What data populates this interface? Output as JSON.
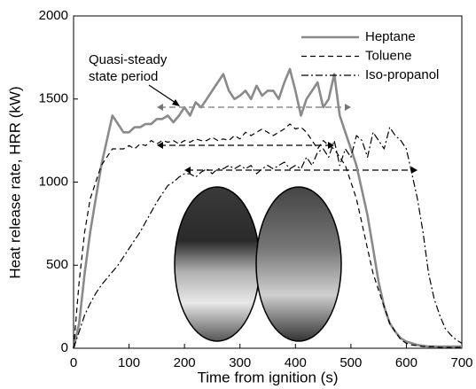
{
  "chart_data": {
    "type": "line",
    "x_label": "Time from ignition (s)",
    "y_label": "Heat release rate, HRR (kW)",
    "annotation": [
      "Quasi-steady",
      "state period"
    ],
    "x": [
      0,
      10,
      20,
      30,
      40,
      50,
      60,
      70,
      80,
      90,
      100,
      110,
      120,
      130,
      140,
      150,
      160,
      170,
      180,
      190,
      200,
      210,
      220,
      230,
      240,
      250,
      260,
      270,
      280,
      290,
      300,
      310,
      320,
      330,
      340,
      350,
      360,
      370,
      380,
      390,
      400,
      410,
      420,
      430,
      440,
      450,
      460,
      470,
      480,
      490,
      500,
      510,
      520,
      530,
      540,
      550,
      560,
      570,
      580,
      590,
      600,
      610,
      620,
      630,
      640,
      650,
      660,
      670,
      680,
      690,
      700
    ],
    "series": [
      {
        "name": "Heptane",
        "color": "#8a8a8a",
        "dash": "none",
        "width": 2.6,
        "values": [
          0,
          150,
          450,
          700,
          900,
          1100,
          1250,
          1400,
          1350,
          1300,
          1300,
          1330,
          1330,
          1350,
          1350,
          1380,
          1380,
          1400,
          1360,
          1400,
          1450,
          1400,
          1480,
          1450,
          1500,
          1550,
          1600,
          1650,
          1550,
          1500,
          1520,
          1550,
          1500,
          1580,
          1520,
          1550,
          1550,
          1500,
          1600,
          1680,
          1550,
          1400,
          1500,
          1550,
          1600,
          1450,
          1500,
          1650,
          1400,
          1300,
          1200,
          1100,
          950,
          800,
          600,
          400,
          250,
          150,
          100,
          60,
          40,
          30,
          20,
          15,
          10,
          10,
          10,
          10,
          10,
          10,
          10
        ]
      },
      {
        "name": "Toluene",
        "color": "#000000",
        "dash": "6 4",
        "width": 1.2,
        "values": [
          0,
          400,
          700,
          900,
          1000,
          1100,
          1150,
          1200,
          1200,
          1200,
          1220,
          1200,
          1230,
          1220,
          1250,
          1230,
          1250,
          1240,
          1250,
          1230,
          1250,
          1240,
          1260,
          1250,
          1250,
          1270,
          1250,
          1260,
          1250,
          1280,
          1260,
          1300,
          1280,
          1300,
          1320,
          1300,
          1280,
          1300,
          1320,
          1350,
          1320,
          1330,
          1300,
          1250,
          1200,
          1250,
          1220,
          1200,
          1150,
          1100,
          1000,
          900,
          750,
          600,
          450,
          350,
          250,
          150,
          100,
          50,
          30,
          20,
          15,
          10,
          10,
          10,
          5,
          5,
          5,
          5,
          5
        ]
      },
      {
        "name": "Iso-propanol",
        "color": "#000000",
        "dash": "8 3 2 3",
        "width": 1.2,
        "values": [
          0,
          100,
          200,
          270,
          330,
          380,
          420,
          460,
          500,
          550,
          600,
          650,
          700,
          760,
          820,
          880,
          930,
          980,
          1000,
          1030,
          1050,
          1050,
          1030,
          1060,
          1080,
          1050,
          1080,
          1080,
          1100,
          1080,
          1100,
          1080,
          1100,
          1050,
          1080,
          1100,
          1080,
          1100,
          1120,
          1080,
          1100,
          1080,
          1150,
          1100,
          1180,
          1200,
          1150,
          1250,
          1100,
          1200,
          1150,
          1280,
          1250,
          1150,
          1300,
          1250,
          1200,
          1330,
          1280,
          1250,
          1200,
          1050,
          900,
          700,
          450,
          300,
          200,
          120,
          80,
          50,
          30
        ]
      }
    ],
    "xlim": [
      0,
      700
    ],
    "xticks": [
      0,
      100,
      200,
      300,
      400,
      500,
      600,
      700
    ],
    "ylim": [
      0,
      2000
    ],
    "yticks": [
      0,
      500,
      1000,
      1500,
      2000
    ],
    "grid": false,
    "legend": "upper right"
  }
}
